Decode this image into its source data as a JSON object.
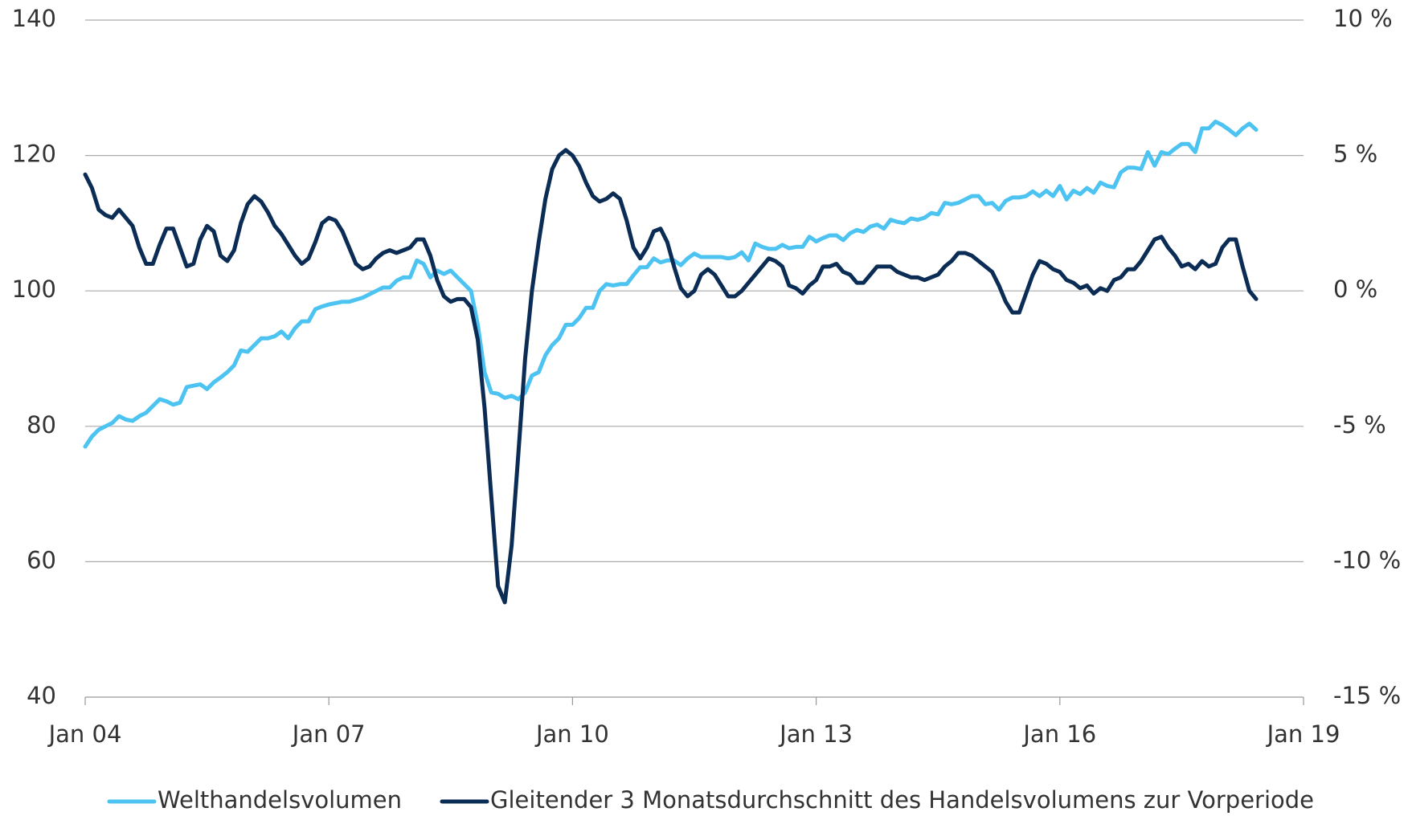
{
  "chart_data": {
    "type": "line",
    "x": [
      "2004-01",
      "2004-02",
      "2004-03",
      "2004-04",
      "2004-05",
      "2004-06",
      "2004-07",
      "2004-08",
      "2004-09",
      "2004-10",
      "2004-11",
      "2004-12",
      "2005-01",
      "2005-02",
      "2005-03",
      "2005-04",
      "2005-05",
      "2005-06",
      "2005-07",
      "2005-08",
      "2005-09",
      "2005-10",
      "2005-11",
      "2005-12",
      "2006-01",
      "2006-02",
      "2006-03",
      "2006-04",
      "2006-05",
      "2006-06",
      "2006-07",
      "2006-08",
      "2006-09",
      "2006-10",
      "2006-11",
      "2006-12",
      "2007-01",
      "2007-02",
      "2007-03",
      "2007-04",
      "2007-05",
      "2007-06",
      "2007-07",
      "2007-08",
      "2007-09",
      "2007-10",
      "2007-11",
      "2007-12",
      "2008-01",
      "2008-02",
      "2008-03",
      "2008-04",
      "2008-05",
      "2008-06",
      "2008-07",
      "2008-08",
      "2008-09",
      "2008-10",
      "2008-11",
      "2008-12",
      "2009-01",
      "2009-02",
      "2009-03",
      "2009-04",
      "2009-05",
      "2009-06",
      "2009-07",
      "2009-08",
      "2009-09",
      "2009-10",
      "2009-11",
      "2009-12",
      "2010-01",
      "2010-02",
      "2010-03",
      "2010-04",
      "2010-05",
      "2010-06",
      "2010-07",
      "2010-08",
      "2010-09",
      "2010-10",
      "2010-11",
      "2010-12",
      "2011-01",
      "2011-02",
      "2011-03",
      "2011-04",
      "2011-05",
      "2011-06",
      "2011-07",
      "2011-08",
      "2011-09",
      "2011-10",
      "2011-11",
      "2011-12",
      "2012-01",
      "2012-02",
      "2012-03",
      "2012-04",
      "2012-05",
      "2012-06",
      "2012-07",
      "2012-08",
      "2012-09",
      "2012-10",
      "2012-11",
      "2012-12",
      "2013-01",
      "2013-02",
      "2013-03",
      "2013-04",
      "2013-05",
      "2013-06",
      "2013-07",
      "2013-08",
      "2013-09",
      "2013-10",
      "2013-11",
      "2013-12",
      "2014-01",
      "2014-02",
      "2014-03",
      "2014-04",
      "2014-05",
      "2014-06",
      "2014-07",
      "2014-08",
      "2014-09",
      "2014-10",
      "2014-11",
      "2014-12",
      "2015-01",
      "2015-02",
      "2015-03",
      "2015-04",
      "2015-05",
      "2015-06",
      "2015-07",
      "2015-08",
      "2015-09",
      "2015-10",
      "2015-11",
      "2015-12",
      "2016-01",
      "2016-02",
      "2016-03",
      "2016-04",
      "2016-05",
      "2016-06",
      "2016-07",
      "2016-08",
      "2016-09",
      "2016-10",
      "2016-11",
      "2016-12",
      "2017-01",
      "2017-02",
      "2017-03",
      "2017-04",
      "2017-05",
      "2017-06",
      "2017-07",
      "2017-08",
      "2017-09",
      "2017-10",
      "2017-11",
      "2017-12",
      "2018-01",
      "2018-02",
      "2018-03",
      "2018-04",
      "2018-05",
      "2018-06"
    ],
    "xlim": [
      "2004-01",
      "2019-01"
    ],
    "xticks": [
      {
        "value": "2004-01",
        "label": "Jan 04"
      },
      {
        "value": "2007-01",
        "label": "Jan 07"
      },
      {
        "value": "2010-01",
        "label": "Jan 10"
      },
      {
        "value": "2013-01",
        "label": "Jan 13"
      },
      {
        "value": "2016-01",
        "label": "Jan 16"
      },
      {
        "value": "2019-01",
        "label": "Jan 19"
      }
    ],
    "ylim": [
      40,
      140
    ],
    "yticks": [
      40,
      60,
      80,
      100,
      120,
      140
    ],
    "y2lim": [
      -15,
      10
    ],
    "y2ticks": [
      {
        "value": -15,
        "label": "-15 %"
      },
      {
        "value": -10,
        "label": "-10 %"
      },
      {
        "value": -5,
        "label": "-5 %"
      },
      {
        "value": 0,
        "label": "0 %"
      },
      {
        "value": 5,
        "label": "5 %"
      },
      {
        "value": 10,
        "label": "10 %"
      }
    ],
    "grid": true,
    "legend": "bottom",
    "series": [
      {
        "name": "Welthandelsvolumen",
        "color": "#4dc3f2",
        "values": [
          77,
          78.5,
          79.5,
          80,
          80.5,
          81.5,
          81,
          80.8,
          81.5,
          82,
          83,
          84,
          83.7,
          83.2,
          83.5,
          85.8,
          86,
          86.2,
          85.5,
          86.5,
          87.2,
          88,
          89,
          91.2,
          91,
          92,
          93,
          93,
          93.3,
          94,
          93,
          94.5,
          95.5,
          95.5,
          97.3,
          97.7,
          98,
          98.2,
          98.4,
          98.4,
          98.7,
          99,
          99.5,
          100,
          100.5,
          100.5,
          101.5,
          102,
          102,
          104.5,
          104,
          102,
          103,
          102.5,
          103,
          102,
          101,
          100,
          95,
          88,
          85,
          84.8,
          84.2,
          84.5,
          84,
          85,
          87.5,
          88,
          90.5,
          92,
          93,
          95,
          95,
          96,
          97.5,
          97.5,
          100,
          101,
          100.8,
          101,
          101,
          102.3,
          103.5,
          103.5,
          104.8,
          104.2,
          104.5,
          104.5,
          103.8,
          104.8,
          105.5,
          105,
          105,
          105,
          105,
          104.8,
          105,
          105.7,
          104.5,
          107,
          106.5,
          106.2,
          106.2,
          106.8,
          106.3,
          106.5,
          106.5,
          108,
          107.3,
          107.8,
          108.2,
          108.2,
          107.5,
          108.5,
          109,
          108.7,
          109.5,
          109.8,
          109.2,
          110.5,
          110.2,
          110,
          110.7,
          110.5,
          110.8,
          111.5,
          111.3,
          113,
          112.8,
          113,
          113.5,
          114,
          114,
          112.8,
          113,
          112,
          113.3,
          113.8,
          113.8,
          114,
          114.7,
          114,
          114.8,
          114,
          115.5,
          113.5,
          114.8,
          114.3,
          115.2,
          114.5,
          116,
          115.5,
          115.3,
          117.5,
          118.2,
          118.2,
          118,
          120.5,
          118.5,
          120.5,
          120.2,
          121,
          121.7,
          121.7,
          120.5,
          124,
          124,
          125,
          124.5,
          123.8,
          123,
          124,
          124.7,
          123.8
        ]
      },
      {
        "name": "Gleitender 3 Monatsdurchschnitt des Handelsvolumens zur Vorperiode",
        "color": "#0b2d55",
        "axis": "y2",
        "values": [
          4.3,
          3.8,
          3.0,
          2.8,
          2.7,
          3.0,
          2.7,
          2.4,
          1.6,
          1.0,
          1.0,
          1.7,
          2.3,
          2.3,
          1.6,
          0.9,
          1.0,
          1.9,
          2.4,
          2.2,
          1.3,
          1.1,
          1.5,
          2.5,
          3.2,
          3.5,
          3.3,
          2.9,
          2.4,
          2.1,
          1.7,
          1.3,
          1.0,
          1.2,
          1.8,
          2.5,
          2.7,
          2.6,
          2.2,
          1.6,
          1.0,
          0.8,
          0.9,
          1.2,
          1.4,
          1.5,
          1.4,
          1.5,
          1.6,
          1.9,
          1.9,
          1.3,
          0.4,
          -0.2,
          -0.4,
          -0.3,
          -0.3,
          -0.6,
          -1.8,
          -4.3,
          -7.6,
          -10.9,
          -11.5,
          -9.4,
          -6.0,
          -2.5,
          0.0,
          1.8,
          3.4,
          4.5,
          5.0,
          5.2,
          5.0,
          4.6,
          4.0,
          3.5,
          3.3,
          3.4,
          3.6,
          3.4,
          2.6,
          1.6,
          1.2,
          1.6,
          2.2,
          2.3,
          1.8,
          0.9,
          0.1,
          -0.2,
          0.0,
          0.6,
          0.8,
          0.6,
          0.2,
          -0.2,
          -0.2,
          0.0,
          0.3,
          0.6,
          0.9,
          1.2,
          1.1,
          0.9,
          0.2,
          0.1,
          -0.1,
          0.2,
          0.4,
          0.9,
          0.9,
          1.0,
          0.7,
          0.6,
          0.3,
          0.3,
          0.6,
          0.9,
          0.9,
          0.9,
          0.7,
          0.6,
          0.5,
          0.5,
          0.4,
          0.5,
          0.6,
          0.9,
          1.1,
          1.4,
          1.4,
          1.3,
          1.1,
          0.9,
          0.7,
          0.2,
          -0.4,
          -0.8,
          -0.8,
          -0.1,
          0.6,
          1.1,
          1.0,
          0.8,
          0.7,
          0.4,
          0.3,
          0.1,
          0.2,
          -0.1,
          0.1,
          0.0,
          0.4,
          0.5,
          0.8,
          0.8,
          1.1,
          1.5,
          1.9,
          2.0,
          1.6,
          1.3,
          0.9,
          1.0,
          0.8,
          1.1,
          0.9,
          1.0,
          1.6,
          1.9,
          1.9,
          0.9,
          0.0,
          -0.3
        ]
      }
    ]
  }
}
